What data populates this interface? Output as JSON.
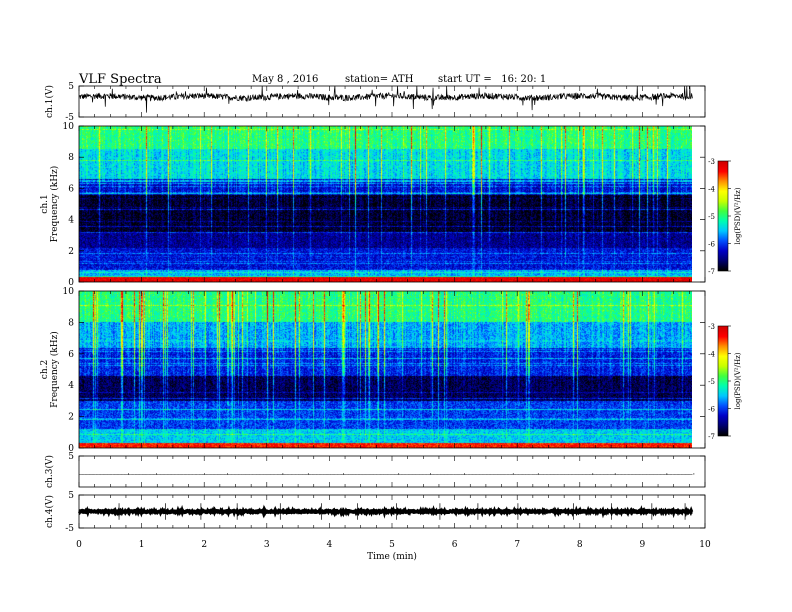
{
  "header": {
    "title": "VLF Spectra",
    "date": "May 8 , 2016",
    "station": "station= ATH",
    "start": "start UT =   16: 20: 1"
  },
  "colors": {
    "spectrum_scale": [
      "#000000",
      "#000070",
      "#0000c8",
      "#0050ff",
      "#00c8ff",
      "#00ffb0",
      "#40ff40",
      "#c8ff00",
      "#ffff00",
      "#ff9000",
      "#ff0000",
      "#d00000"
    ]
  },
  "chart_data": [
    {
      "type": "line",
      "panel": "ch1-waveform",
      "ylabel": "ch.1(V)",
      "ylim": [
        -5,
        5
      ],
      "yticks": [
        "5",
        "-5"
      ],
      "x_range_min": [
        0,
        9.8
      ],
      "baseline_v": 1.5,
      "noise_amplitude_v": 1.0
    },
    {
      "type": "heatmap",
      "panel": "ch1-spectrogram",
      "ylabel": "ch.1\nFrequency  (kHz)",
      "ylim": [
        0,
        10
      ],
      "yticks": [
        "0",
        "2",
        "4",
        "6",
        "8",
        "10"
      ],
      "x_range_min": [
        0,
        9.8
      ],
      "bands": [
        {
          "f_low": 0.0,
          "f_high": 0.3,
          "level": -3.2
        },
        {
          "f_low": 0.3,
          "f_high": 0.8,
          "level": -5.6
        },
        {
          "f_low": 0.8,
          "f_high": 2.2,
          "level": -6.2
        },
        {
          "f_low": 2.2,
          "f_high": 3.2,
          "level": -6.5
        },
        {
          "f_low": 3.2,
          "f_high": 5.6,
          "level": -6.85
        },
        {
          "f_low": 5.6,
          "f_high": 6.6,
          "level": -6.2
        },
        {
          "f_low": 6.6,
          "f_high": 8.5,
          "level": -5.4
        },
        {
          "f_low": 8.5,
          "f_high": 10.0,
          "level": -5.0
        }
      ],
      "colorbar": {
        "label": "log(PSD)(V²/Hz)",
        "range": [
          -7,
          -3
        ],
        "ticks": [
          "-3",
          "-4",
          "-5",
          "-6",
          "-7"
        ]
      }
    },
    {
      "type": "heatmap",
      "panel": "ch2-spectrogram",
      "ylabel": "ch.2\nFrequency  (kHz)",
      "ylim": [
        0,
        10
      ],
      "yticks": [
        "0",
        "2",
        "4",
        "6",
        "8",
        "10"
      ],
      "x_range_min": [
        0,
        9.8
      ],
      "bands": [
        {
          "f_low": 0.0,
          "f_high": 0.3,
          "level": -3.4
        },
        {
          "f_low": 0.3,
          "f_high": 1.2,
          "level": -5.5
        },
        {
          "f_low": 1.2,
          "f_high": 3.0,
          "level": -6.0
        },
        {
          "f_low": 3.0,
          "f_high": 4.6,
          "level": -6.7
        },
        {
          "f_low": 4.6,
          "f_high": 6.4,
          "level": -6.1
        },
        {
          "f_low": 6.4,
          "f_high": 8.0,
          "level": -5.6
        },
        {
          "f_low": 8.0,
          "f_high": 10.0,
          "level": -5.0
        }
      ],
      "colorbar": {
        "label": "log(PSD)(V²/Hz)",
        "range": [
          -7,
          -3
        ],
        "ticks": [
          "-3",
          "-4",
          "-5",
          "-6",
          "-7"
        ]
      }
    },
    {
      "type": "line",
      "panel": "ch3-waveform",
      "ylabel": "ch.3(V)",
      "ylim": [
        -5,
        5
      ],
      "yticks": [
        "5"
      ],
      "x_range_min": [
        0,
        9.8
      ],
      "baseline_v": -1.0,
      "noise_amplitude_v": 0.05
    },
    {
      "type": "line",
      "panel": "ch4-waveform",
      "ylabel": "ch.4(V)",
      "ylim": [
        -5,
        5
      ],
      "yticks": [
        "5",
        "-5"
      ],
      "x_range_min": [
        0,
        9.8
      ],
      "baseline_v": 0.0,
      "noise_amplitude_v": 0.25
    }
  ],
  "time_axis": {
    "label": "Time  (min)",
    "range": [
      0,
      10
    ],
    "ticks": [
      "0",
      "1",
      "2",
      "3",
      "4",
      "5",
      "6",
      "7",
      "8",
      "9",
      "10"
    ]
  }
}
